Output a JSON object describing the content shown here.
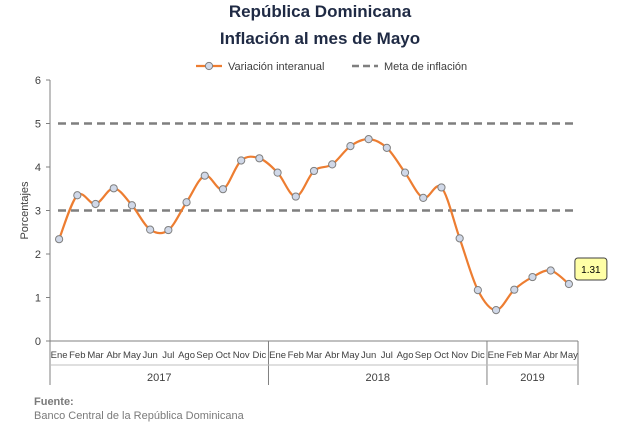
{
  "header": {
    "title": "República Dominicana",
    "subtitle": "Inflación al mes de Mayo"
  },
  "source": {
    "label": "Fuente:",
    "text": "Banco Central de la República Dominicana"
  },
  "colors": {
    "series": "#ed7d31",
    "marker_fill": "#d0d8e8",
    "marker_stroke": "#7f7f7f",
    "target": "#7f7f7f",
    "callout_fill": "#ffffa6",
    "title": "#1f2a44"
  },
  "chart_data": {
    "type": "line",
    "ylabel": "Porcentajes",
    "ylim": [
      0,
      6
    ],
    "yticks": [
      0,
      1,
      2,
      3,
      4,
      5,
      6
    ],
    "grid": false,
    "legend_position": "top",
    "categories": [
      "Ene",
      "Feb",
      "Mar",
      "Abr",
      "May",
      "Jun",
      "Jul",
      "Ago",
      "Sep",
      "Oct",
      "Nov",
      "Dic",
      "Ene",
      "Feb",
      "Mar",
      "Abr",
      "May",
      "Jun",
      "Jul",
      "Ago",
      "Sep",
      "Oct",
      "Nov",
      "Dic",
      "Ene",
      "Feb",
      "Mar",
      "Abr",
      "May"
    ],
    "year_groups": [
      {
        "label": "2017",
        "count": 12
      },
      {
        "label": "2018",
        "count": 12
      },
      {
        "label": "2019",
        "count": 5
      }
    ],
    "series": [
      {
        "name": "Variación interanual",
        "values": [
          2.34,
          3.35,
          3.15,
          3.51,
          3.12,
          2.56,
          2.55,
          3.19,
          3.8,
          3.49,
          4.15,
          4.2,
          3.87,
          3.32,
          3.91,
          4.06,
          4.48,
          4.64,
          4.44,
          3.87,
          3.29,
          3.53,
          2.36,
          1.17,
          0.71,
          1.18,
          1.47,
          1.62,
          1.31
        ]
      },
      {
        "name": "Meta de inflación",
        "values": [
          3,
          3,
          3,
          3,
          3,
          3,
          3,
          3,
          3,
          3,
          3,
          3,
          3,
          3,
          3,
          3,
          3,
          3,
          3,
          3,
          3,
          3,
          3,
          3,
          3,
          3,
          3,
          3,
          3
        ],
        "upper": 5,
        "lower": 3
      }
    ],
    "annotation": {
      "label": "1.31",
      "index": 28
    }
  }
}
